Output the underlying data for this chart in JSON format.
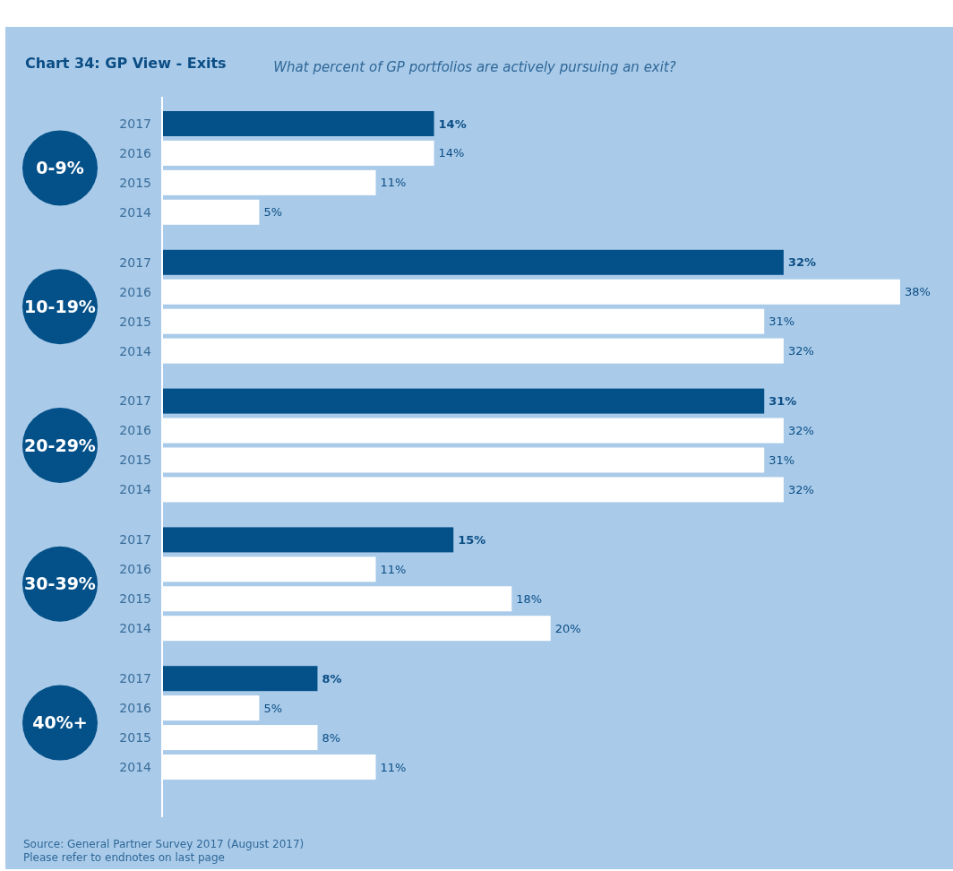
{
  "chart_data": {
    "type": "bar",
    "orientation": "horizontal",
    "title": "Chart 34: GP View - Exits",
    "subtitle": "What percent of GP portfolios are actively pursuing an exit?",
    "categories": [
      "0-9%",
      "10-19%",
      "20-29%",
      "30-39%",
      "40%+"
    ],
    "series": [
      {
        "name": "2017",
        "color": "#045089",
        "values": [
          14,
          32,
          31,
          15,
          8
        ],
        "value_labels": [
          "14%",
          "32%",
          "31%",
          "15%",
          "8%"
        ]
      },
      {
        "name": "2016",
        "color": "#ffffff",
        "values": [
          14,
          38,
          32,
          11,
          5
        ],
        "value_labels": [
          "14%",
          "38%",
          "32%",
          "11%",
          "5%"
        ]
      },
      {
        "name": "2015",
        "color": "#ffffff",
        "values": [
          11,
          31,
          31,
          18,
          8
        ],
        "value_labels": [
          "11%",
          "31%",
          "31%",
          "18%",
          "8%"
        ]
      },
      {
        "name": "2014",
        "color": "#ffffff",
        "values": [
          5,
          32,
          32,
          20,
          11
        ],
        "value_labels": [
          "5%",
          "32%",
          "32%",
          "20%",
          "11%"
        ]
      }
    ],
    "annotations": [
      "Source: General Partner Survey 2017 (August 2017)",
      "Please refer to endnotes on last page"
    ]
  }
}
